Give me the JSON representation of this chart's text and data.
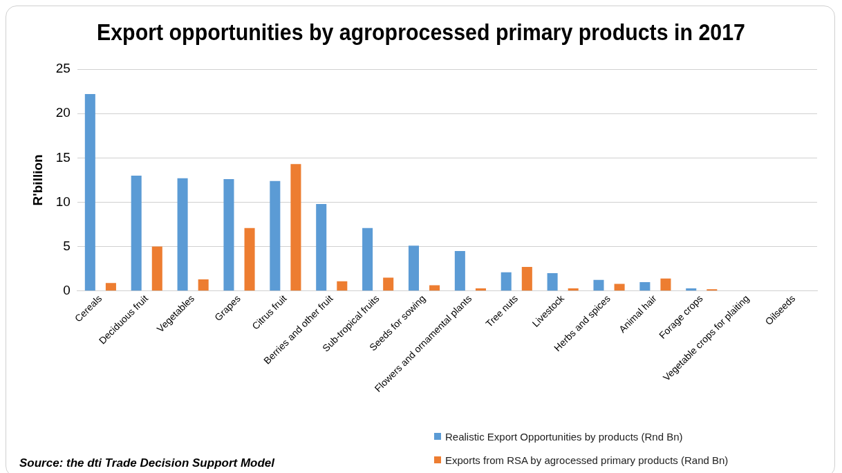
{
  "chart_data": {
    "type": "bar",
    "title": "Export opportunities by agroprocessed primary products in 2017",
    "ylabel": "R'billion",
    "categories": [
      "Cereals",
      "Deciduous fruit",
      "Vegetables",
      "Grapes",
      "Citrus fruit",
      "Berries and other fruit",
      "Sub-tropical fruits",
      "Seeds for sowing",
      "Flowers and ornamental plants",
      "Tree nuts",
      "Livestock",
      "Herbs and spices",
      "Animal hair",
      "Forage crops",
      "Vegetable crops for plaiting",
      "Oilseeds"
    ],
    "series": [
      {
        "name": "Realistic Export Opportunities by products (Rnd Bn)",
        "color": "#5b9bd5",
        "values": [
          22.2,
          13.0,
          12.7,
          12.6,
          12.4,
          9.8,
          7.1,
          5.1,
          4.5,
          2.1,
          2.0,
          1.25,
          1.0,
          0.3,
          null,
          0
        ]
      },
      {
        "name": "Exports from RSA by agrocessed primary products (Rand Bn)",
        "color": "#ed7d31",
        "values": [
          0.9,
          5.0,
          1.3,
          7.1,
          14.3,
          1.1,
          1.5,
          0.65,
          0.3,
          2.7,
          0.3,
          0.8,
          1.4,
          0.2,
          0,
          0
        ]
      }
    ],
    "ylim": [
      0,
      25
    ],
    "yticks": [
      0,
      5,
      10,
      15,
      20,
      25
    ],
    "grid": "y",
    "legend": "bottom right",
    "annotations": [
      "Source: the dti Trade Decision Support Model"
    ]
  }
}
